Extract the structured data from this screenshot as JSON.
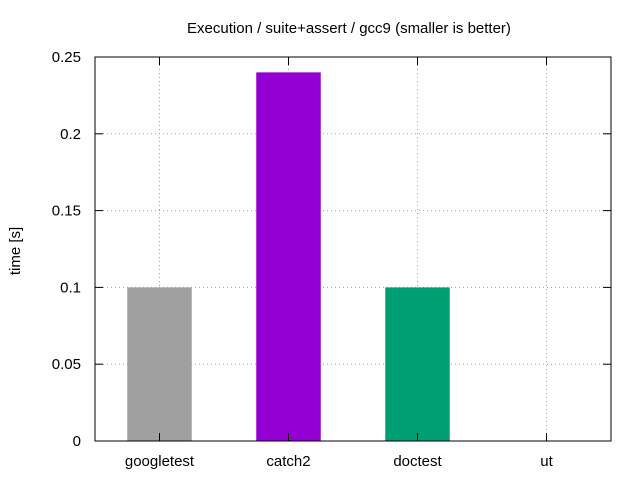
{
  "chart_data": {
    "type": "bar",
    "title": "Execution / suite+assert / gcc9 (smaller is better)",
    "xlabel": "",
    "ylabel": "time [s]",
    "categories": [
      "googletest",
      "catch2",
      "doctest",
      "ut"
    ],
    "values": [
      0.1,
      0.24,
      0.1,
      0.0
    ],
    "colors": [
      "#a0a0a0",
      "#9400d3",
      "#009e73",
      "#56b4e9"
    ],
    "ylim": [
      0,
      0.25
    ],
    "yticks": [
      0,
      0.05,
      0.1,
      0.15,
      0.2,
      0.25
    ],
    "ytick_labels": [
      "0",
      "0.05",
      "0.1",
      "0.15",
      "0.2",
      "0.25"
    ],
    "grid": true,
    "grid_style": "dotted",
    "legend": "none"
  }
}
